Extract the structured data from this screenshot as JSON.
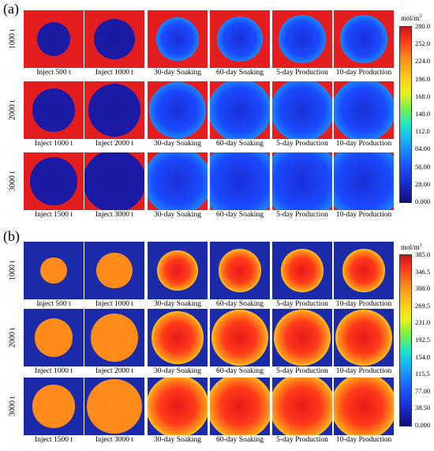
{
  "panel_a": {
    "label": "(a)",
    "rows": [
      {
        "label": "1000 t",
        "captions": [
          "Inject 500 t",
          "Inject 1000 t",
          "30-day  Soaking",
          "60-day  Soaking",
          "5-day  Production",
          "10-day  Production"
        ]
      },
      {
        "label": "2000 t",
        "captions": [
          "Inject 1000 t",
          "Inject 2000 t",
          "30-day  Soaking",
          "60-day  Soaking",
          "5-day  Production",
          "10-day  Production"
        ]
      },
      {
        "label": "3000 t",
        "captions": [
          "Inject 1500 t",
          "Inject 3000 t",
          "30-day  Soaking",
          "60-day  Soaking",
          "5-day  Production",
          "10-day  Production"
        ]
      }
    ],
    "colorbar": {
      "unit": "mol/m",
      "unit_sup": "3",
      "ticks": [
        "280.0",
        "252.0",
        "224.0",
        "196.0",
        "168.0",
        "140.0",
        "112.0",
        "84.00",
        "56.00",
        "28.00",
        "0.000"
      ]
    }
  },
  "panel_b": {
    "label": "(b)",
    "rows": [
      {
        "label": "1000 t",
        "captions": [
          "Inject 500 t",
          "Inject 1000 t",
          "30-day  Soaking",
          "60-day  Soaking",
          "5-day  Production",
          "10-day  Production"
        ]
      },
      {
        "label": "2000 t",
        "captions": [
          "Inject 1000 t",
          "Inject 2000 t",
          "30-day  Soaking",
          "60-day  Soaking",
          "5-day  Production",
          "10-day  Production"
        ]
      },
      {
        "label": "3000 t",
        "captions": [
          "Inject 1500 t",
          "Inject 3000 t",
          "30-day  Soaking",
          "60-day  Soaking",
          "5-day  Production",
          "10-day  Production"
        ]
      }
    ],
    "colorbar": {
      "unit": "mol/m",
      "unit_sup": "3",
      "ticks": [
        "385.0",
        "346.5",
        "308.0",
        "269.5",
        "231.0",
        "192.5",
        "154.0",
        "115.5",
        "77.00",
        "38.50",
        "0.000"
      ]
    }
  },
  "colors": {
    "a_background": "#e41e1e",
    "a_core": "#1a1a9e",
    "b_background": "#1a2aa8",
    "b_core": "#ff8c1a"
  }
}
